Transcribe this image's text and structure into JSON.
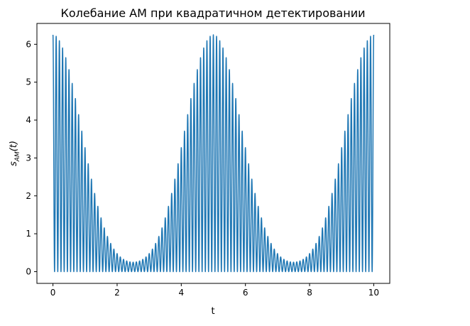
{
  "chart_data": {
    "type": "line",
    "title": "Колебание АМ при квадратичном детектировании",
    "xlabel": "t",
    "ylabel": "s_AM(t)",
    "xlim": [
      -0.5,
      10.5
    ],
    "ylim": [
      -0.31,
      6.55
    ],
    "xticks": [
      0,
      2,
      4,
      6,
      8,
      10
    ],
    "yticks": [
      0,
      1,
      2,
      3,
      4,
      5,
      6
    ],
    "grid": false,
    "legend": "none",
    "series": [
      {
        "name": "",
        "color": "#1f77b4",
        "formula": "(1.5 + cos(2*pi*0.2*t))^2 * cos^2(2*pi*5*t)",
        "envelope": {
          "base": 1.5,
          "amplitude": 1.0,
          "frequency": 0.2
        },
        "carrier_frequency": 5,
        "t_range": [
          0,
          10
        ],
        "samples": 5001
      }
    ]
  }
}
